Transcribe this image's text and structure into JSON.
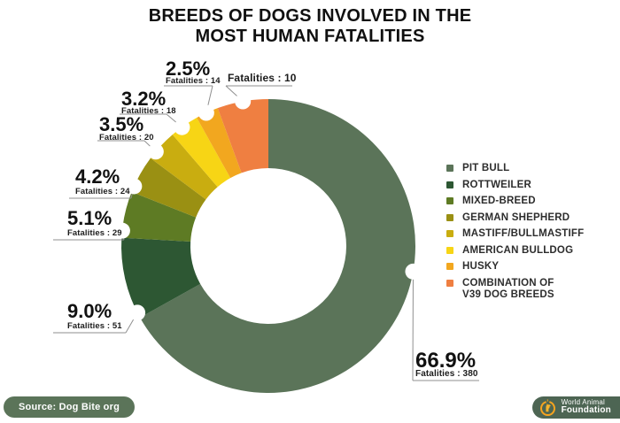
{
  "title": {
    "line1": "BREEDS OF DOGS INVOLVED IN THE",
    "line2": "MOST HUMAN FATALITIES"
  },
  "chart_data": {
    "type": "pie",
    "subtype": "donut",
    "title": "BREEDS OF DOGS INVOLVED IN THE MOST HUMAN FATALITIES",
    "legend_position": "right",
    "series": [
      {
        "label": "PIT BULL",
        "legend_lines": [
          "PIT BULL"
        ],
        "percent": 66.9,
        "percent_label": "66.9%",
        "fatalities": 380,
        "fatalities_label": "Fatalities : 380",
        "color": "#5B7459"
      },
      {
        "label": "ROTTWEILER",
        "legend_lines": [
          "ROTTWEILER"
        ],
        "percent": 9.0,
        "percent_label": "9.0%",
        "fatalities": 51,
        "fatalities_label": "Fatalities : 51",
        "color": "#2D5733"
      },
      {
        "label": "MIXED-BREED",
        "legend_lines": [
          "MIXED-BREED"
        ],
        "percent": 5.1,
        "percent_label": "5.1%",
        "fatalities": 29,
        "fatalities_label": "Fatalities : 29",
        "color": "#5E7B24"
      },
      {
        "label": "GERMAN SHEPHERD",
        "legend_lines": [
          "GERMAN SHEPHERD"
        ],
        "percent": 4.2,
        "percent_label": "4.2%",
        "fatalities": 24,
        "fatalities_label": "Fatalities : 24",
        "color": "#9A9013"
      },
      {
        "label": "MASTIFF/BULLMASTIFF",
        "legend_lines": [
          "MASTIFF/BULLMASTIFF"
        ],
        "percent": 3.5,
        "percent_label": "3.5%",
        "fatalities": 20,
        "fatalities_label": "Fatalities : 20",
        "color": "#C9AD10"
      },
      {
        "label": "AMERICAN BULLDOG",
        "legend_lines": [
          "AMERICAN BULLDOG"
        ],
        "percent": 3.2,
        "percent_label": "3.2%",
        "fatalities": 18,
        "fatalities_label": "Fatalities : 18",
        "color": "#F7D515"
      },
      {
        "label": "HUSKY",
        "legend_lines": [
          "HUSKY"
        ],
        "percent": 2.5,
        "percent_label": "2.5%",
        "fatalities": 14,
        "fatalities_label": "Fatalities : 14",
        "color": "#F2A71F"
      },
      {
        "label": "COMBINATION OF V39 DOG BREEDS",
        "legend_lines": [
          "COMBINATION OF",
          "V39 DOG BREEDS"
        ],
        "percent": null,
        "percent_label": null,
        "fatalities": 10,
        "fatalities_label": "Fatalities : 10",
        "color": "#EF7F41"
      }
    ]
  },
  "source_badge": {
    "label": "Source: Dog Bite org",
    "bg": "#5B7459"
  },
  "logo": {
    "line1": "World Animal",
    "line2": "Foundation",
    "bg": "#4D6553",
    "icon": "dog-in-ring-icon",
    "icon_color": "#F5A31F"
  }
}
